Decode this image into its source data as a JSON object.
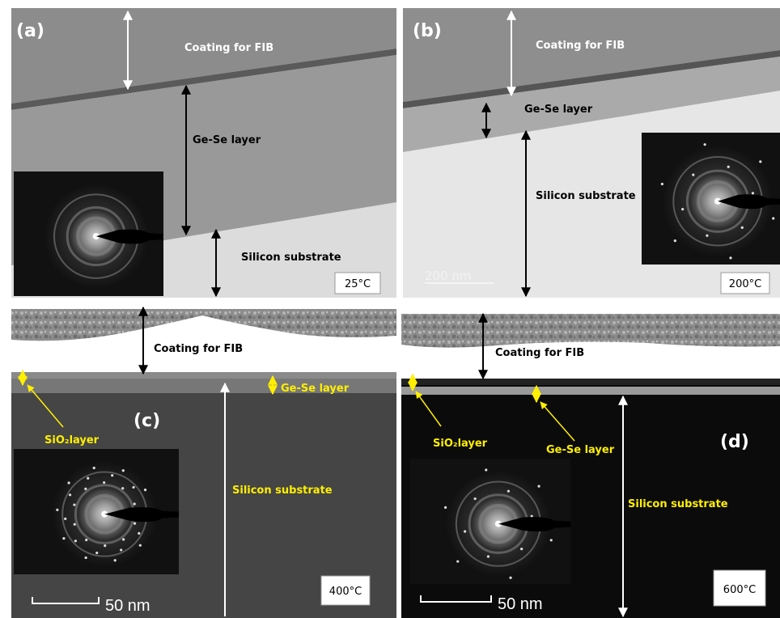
{
  "panels": [
    {
      "label": "(a)",
      "annotations": [
        "Coating for FIB",
        "Ge-Se layer",
        "Silicon substrate"
      ],
      "temperature": "25°C"
    },
    {
      "label": "(b)",
      "annotations": [
        "Coating for FIB",
        "Ge-Se layer",
        "Silicon substrate"
      ],
      "temperature": "200°C",
      "scale_bar": "200 nm"
    },
    {
      "label": "(c)",
      "annotations": [
        "Coating for FIB",
        "Ge-Se layer",
        "SiO₂layer",
        "Silicon substrate"
      ],
      "temperature": "400°C",
      "scale_bar": "50 nm"
    },
    {
      "label": "(d)",
      "annotations": [
        "Coating for FIB",
        "SiO₂layer",
        "Ge-Se layer",
        "Silicon substrate"
      ],
      "temperature": "600°C",
      "scale_bar": "50 nm"
    }
  ]
}
